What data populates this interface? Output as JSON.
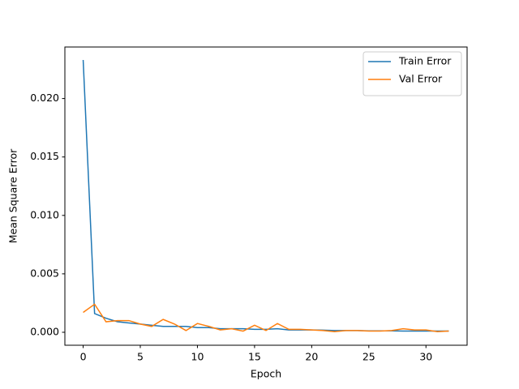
{
  "chart_data": {
    "type": "line",
    "xlabel": "Epoch",
    "ylabel": "Mean Square Error",
    "x": [
      0,
      1,
      2,
      3,
      4,
      5,
      6,
      7,
      8,
      9,
      10,
      11,
      12,
      13,
      14,
      15,
      16,
      17,
      18,
      19,
      20,
      21,
      22,
      23,
      24,
      25,
      26,
      27,
      28,
      29,
      30,
      31,
      32
    ],
    "series": [
      {
        "name": "Train Error",
        "color": "#1f77b4",
        "values": [
          0.0233,
          0.0016,
          0.0012,
          0.0009,
          0.0008,
          0.0007,
          0.0006,
          0.0005,
          0.0005,
          0.0005,
          0.0004,
          0.0004,
          0.0003,
          0.0003,
          0.0003,
          0.00025,
          0.00025,
          0.0003,
          0.0002,
          0.0002,
          0.0002,
          0.00018,
          0.00015,
          0.00015,
          0.00015,
          0.00012,
          0.00012,
          0.00012,
          0.0001,
          0.0001,
          0.0001,
          0.0001,
          0.0001
        ]
      },
      {
        "name": "Val Error",
        "color": "#ff7f0e",
        "values": [
          0.0017,
          0.0024,
          0.0009,
          0.001,
          0.001,
          0.0007,
          0.0005,
          0.0011,
          0.0007,
          0.00015,
          0.00075,
          0.0005,
          0.0002,
          0.0003,
          0.0001,
          0.0006,
          0.00015,
          0.00075,
          0.00025,
          0.00025,
          0.0002,
          0.00015,
          5e-05,
          0.00015,
          0.00015,
          0.0001,
          0.0001,
          0.00015,
          0.0003,
          0.0002,
          0.0002,
          5e-05,
          0.0001
        ]
      }
    ],
    "xlim": [
      -1.6,
      33.6
    ],
    "ylim": [
      -0.00111,
      0.02441
    ],
    "xticks": [
      0,
      5,
      10,
      15,
      20,
      25,
      30
    ],
    "yticks": [
      {
        "value": 0,
        "label": "0.000"
      },
      {
        "value": 0.005,
        "label": "0.005"
      },
      {
        "value": 0.01,
        "label": "0.010"
      },
      {
        "value": 0.015,
        "label": "0.015"
      },
      {
        "value": 0.02,
        "label": "0.020"
      }
    ],
    "legend": "upper right"
  }
}
